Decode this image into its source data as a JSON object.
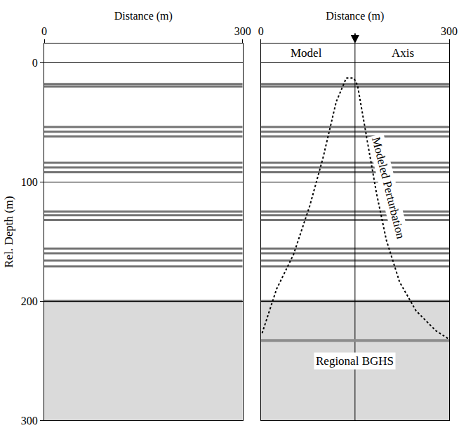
{
  "chart_data": [
    {
      "type": "line",
      "xlabel": "Distance (m)",
      "ylabel": "Rel. Depth (m)",
      "xlim": [
        0,
        300
      ],
      "xticks": [
        0,
        300
      ],
      "ylim": [
        300,
        -16
      ],
      "yticks": [
        0,
        100,
        200,
        300
      ],
      "grid": true,
      "tick_labels": true,
      "reflector_depths": [
        18,
        20,
        54,
        58,
        62,
        84,
        88,
        92,
        125,
        128,
        132,
        156,
        160,
        166,
        171,
        200
      ],
      "noise_top": 200,
      "series": []
    },
    {
      "type": "line",
      "xlabel": "Distance (m)",
      "xlim": [
        0,
        300
      ],
      "xticks": [
        0,
        300
      ],
      "ylim": [
        300,
        -16
      ],
      "yticks": [
        0,
        100,
        200,
        300
      ],
      "grid": true,
      "tick_labels": "x",
      "reflector_depths": [
        18,
        20,
        54,
        58,
        62,
        84,
        88,
        92,
        125,
        128,
        132,
        156,
        160,
        166,
        171,
        200
      ],
      "noise_top": 200,
      "model_axis_x": 150,
      "annotations": [
        {
          "text": "Model",
          "x": 73,
          "y": -8
        },
        {
          "text": "Axis",
          "x": 226,
          "y": -8
        }
      ],
      "series": [
        {
          "label": "Modeled Perturbation",
          "label_x": 203,
          "label_y": 105,
          "color": "#000000",
          "line_style": "dotted",
          "x": [
            2,
            25,
            52,
            78,
            99,
            120,
            136,
            148,
            154,
            168,
            184,
            200,
            221,
            247,
            279,
            300
          ],
          "values": [
            227,
            190,
            161,
            120,
            80,
            33,
            13,
            13,
            19,
            62,
            109,
            149,
            184,
            208,
            225,
            232
          ]
        },
        {
          "label": "Regional BGHS",
          "label_x": 150,
          "label_y": 250,
          "color": "#8c8c8c",
          "line_style": "solid",
          "x": [
            0,
            300
          ],
          "values": [
            233,
            233
          ]
        }
      ]
    }
  ]
}
